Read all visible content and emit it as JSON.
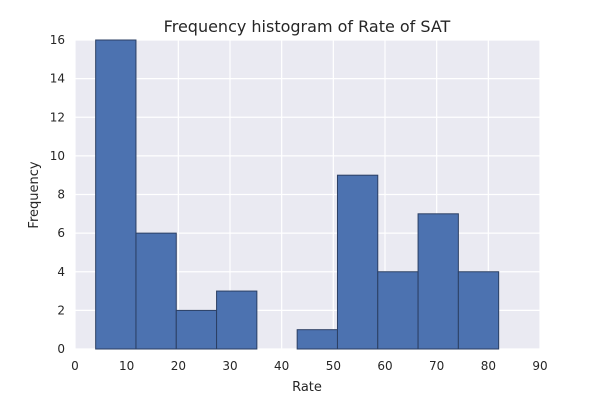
{
  "chart_data": {
    "type": "bar",
    "title": "Frequency histogram of Rate of SAT",
    "xlabel": "Rate",
    "ylabel": "Frequency",
    "xlim": [
      0,
      90
    ],
    "ylim": [
      0,
      16
    ],
    "xticks": [
      0,
      10,
      20,
      30,
      40,
      50,
      60,
      70,
      80,
      90
    ],
    "yticks": [
      0,
      2,
      4,
      6,
      8,
      10,
      12,
      14,
      16
    ],
    "grid": true,
    "colors": {
      "bar": "#4c72b0",
      "edge": "#2b3f63",
      "background": "#eaeaf2",
      "grid": "#ffffff"
    },
    "bins": [
      {
        "x0": 4.0,
        "x1": 11.8,
        "value": 16
      },
      {
        "x0": 11.8,
        "x1": 19.6,
        "value": 6
      },
      {
        "x0": 19.6,
        "x1": 27.4,
        "value": 2
      },
      {
        "x0": 27.4,
        "x1": 35.2,
        "value": 3
      },
      {
        "x0": 35.2,
        "x1": 43.0,
        "value": 0
      },
      {
        "x0": 43.0,
        "x1": 50.8,
        "value": 1
      },
      {
        "x0": 50.8,
        "x1": 58.6,
        "value": 9
      },
      {
        "x0": 58.6,
        "x1": 66.4,
        "value": 4
      },
      {
        "x0": 66.4,
        "x1": 74.2,
        "value": 7
      },
      {
        "x0": 74.2,
        "x1": 82.0,
        "value": 4
      }
    ]
  }
}
